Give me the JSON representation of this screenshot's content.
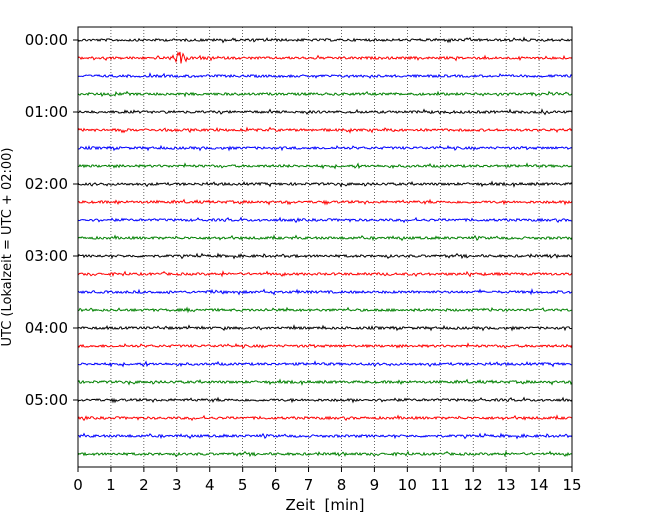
{
  "chart_data": {
    "type": "line",
    "title": "",
    "xlabel": "Zeit  [min]",
    "ylabel": "UTC (Lokalzeit = UTC + 02:00)",
    "xlim": [
      0,
      15
    ],
    "x_ticks": [
      0,
      1,
      2,
      3,
      4,
      5,
      6,
      7,
      8,
      9,
      10,
      11,
      12,
      13,
      14,
      15
    ],
    "x_tick_labels": [
      "0",
      "1",
      "2",
      "3",
      "4",
      "5",
      "6",
      "7",
      "8",
      "9",
      "10",
      "11",
      "12",
      "13",
      "14",
      "15"
    ],
    "y_tick_labels": [
      "00:00",
      "01:00",
      "02:00",
      "03:00",
      "04:00",
      "05:00"
    ],
    "grid": "vertical dotted",
    "traces_per_hour": 4,
    "trace_minutes": 15,
    "color_cycle": [
      "#000000",
      "#ff0000",
      "#0000ff",
      "#008000"
    ],
    "traces": [
      {
        "start": "00:00",
        "color": "#000000"
      },
      {
        "start": "00:15",
        "color": "#ff0000",
        "events": [
          {
            "minute": 3.1,
            "amplitude": "high"
          }
        ]
      },
      {
        "start": "00:30",
        "color": "#0000ff"
      },
      {
        "start": "00:45",
        "color": "#008000"
      },
      {
        "start": "01:00",
        "color": "#000000"
      },
      {
        "start": "01:15",
        "color": "#ff0000"
      },
      {
        "start": "01:30",
        "color": "#0000ff"
      },
      {
        "start": "01:45",
        "color": "#008000"
      },
      {
        "start": "02:00",
        "color": "#000000"
      },
      {
        "start": "02:15",
        "color": "#ff0000"
      },
      {
        "start": "02:30",
        "color": "#0000ff"
      },
      {
        "start": "02:45",
        "color": "#008000"
      },
      {
        "start": "03:00",
        "color": "#000000"
      },
      {
        "start": "03:15",
        "color": "#ff0000"
      },
      {
        "start": "03:30",
        "color": "#0000ff"
      },
      {
        "start": "03:45",
        "color": "#008000"
      },
      {
        "start": "04:00",
        "color": "#000000"
      },
      {
        "start": "04:15",
        "color": "#ff0000"
      },
      {
        "start": "04:30",
        "color": "#0000ff"
      },
      {
        "start": "04:45",
        "color": "#008000"
      },
      {
        "start": "05:00",
        "color": "#000000"
      },
      {
        "start": "05:15",
        "color": "#ff0000"
      },
      {
        "start": "05:30",
        "color": "#0000ff"
      },
      {
        "start": "05:45",
        "color": "#008000"
      }
    ]
  }
}
